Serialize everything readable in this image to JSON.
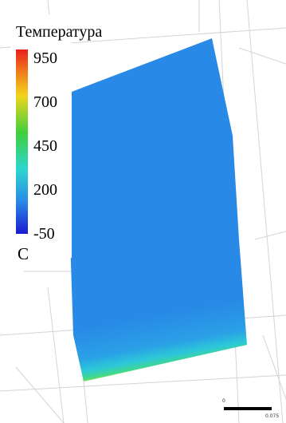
{
  "legend": {
    "title": "Температура",
    "ticks": [
      950,
      700,
      450,
      200,
      -50
    ],
    "unit": "C"
  },
  "scale_bar": {
    "start": "0",
    "end": "0.075"
  }
}
